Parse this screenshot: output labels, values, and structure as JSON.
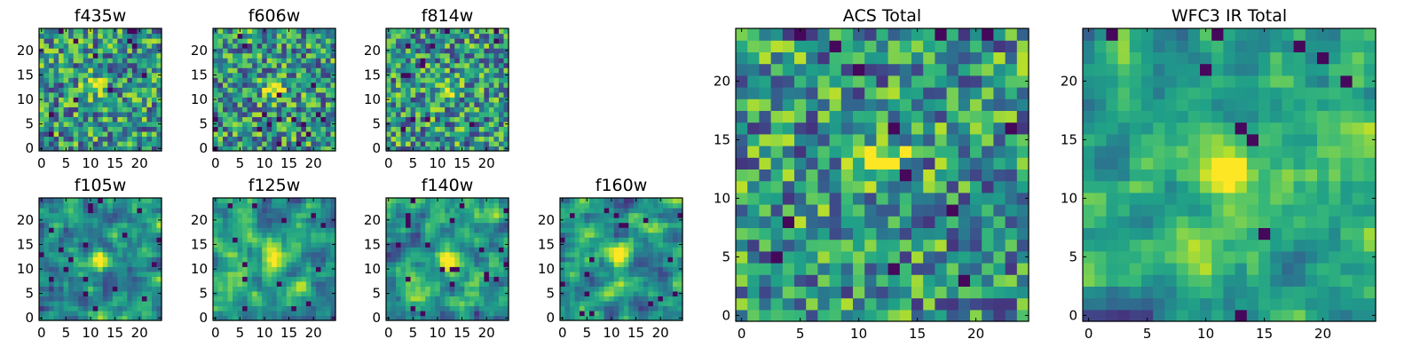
{
  "chart_data": [
    {
      "type": "heatmap",
      "title": "f435w",
      "colormap": "viridis",
      "xlim": [
        -0.5,
        24.5
      ],
      "ylim": [
        -0.5,
        24.5
      ],
      "xticks": [
        0,
        5,
        10,
        15,
        20
      ],
      "yticks": [
        0,
        5,
        10,
        15,
        20
      ],
      "center_peak": [
        11,
        13
      ],
      "noise": "high",
      "seed": 11
    },
    {
      "type": "heatmap",
      "title": "f606w",
      "colormap": "viridis",
      "xlim": [
        -0.5,
        24.5
      ],
      "ylim": [
        -0.5,
        24.5
      ],
      "xticks": [
        0,
        5,
        10,
        15,
        20
      ],
      "yticks": [
        0,
        5,
        10,
        15,
        20
      ],
      "center_peak": [
        12,
        12
      ],
      "noise": "medium",
      "seed": 23
    },
    {
      "type": "heatmap",
      "title": "f814w",
      "colormap": "viridis",
      "xlim": [
        -0.5,
        24.5
      ],
      "ylim": [
        -0.5,
        24.5
      ],
      "xticks": [
        0,
        5,
        10,
        15,
        20
      ],
      "yticks": [
        0,
        5,
        10,
        15,
        20
      ],
      "center_peak": [
        12,
        12
      ],
      "noise": "high",
      "seed": 37
    },
    {
      "type": "heatmap",
      "title": "f105w",
      "colormap": "viridis",
      "xlim": [
        -0.5,
        24.5
      ],
      "ylim": [
        -0.5,
        24.5
      ],
      "xticks": [
        0,
        5,
        10,
        15,
        20
      ],
      "yticks": [
        0,
        5,
        10,
        15,
        20
      ],
      "center_peak": [
        12,
        12
      ],
      "noise": "smooth",
      "seed": 41
    },
    {
      "type": "heatmap",
      "title": "f125w",
      "colormap": "viridis",
      "xlim": [
        -0.5,
        24.5
      ],
      "ylim": [
        -0.5,
        24.5
      ],
      "xticks": [
        0,
        5,
        10,
        15,
        20
      ],
      "yticks": [
        0,
        5,
        10,
        15,
        20
      ],
      "center_peak": [
        12,
        12
      ],
      "noise": "smooth",
      "seed": 53
    },
    {
      "type": "heatmap",
      "title": "f140w",
      "colormap": "viridis",
      "xlim": [
        -0.5,
        24.5
      ],
      "ylim": [
        -0.5,
        24.5
      ],
      "xticks": [
        0,
        5,
        10,
        15,
        20
      ],
      "yticks": [
        0,
        5,
        10,
        15,
        20
      ],
      "center_peak": [
        12,
        12
      ],
      "noise": "smooth",
      "seed": 67
    },
    {
      "type": "heatmap",
      "title": "f160w",
      "colormap": "viridis",
      "xlim": [
        -0.5,
        24.5
      ],
      "ylim": [
        -0.5,
        24.5
      ],
      "xticks": [
        0,
        5,
        10,
        15,
        20
      ],
      "yticks": [
        0,
        5,
        10,
        15,
        20
      ],
      "center_peak": [
        12,
        13
      ],
      "noise": "smooth",
      "seed": 71
    },
    {
      "type": "heatmap",
      "title": "ACS Total",
      "colormap": "viridis",
      "xlim": [
        -0.5,
        24.5
      ],
      "ylim": [
        -0.5,
        24.5
      ],
      "xticks": [
        0,
        5,
        10,
        15,
        20
      ],
      "yticks": [
        0,
        5,
        10,
        15,
        20
      ],
      "center_peak": [
        12,
        13
      ],
      "noise": "medium",
      "seed": 83
    },
    {
      "type": "heatmap",
      "title": "WFC3 IR Total",
      "colormap": "viridis",
      "xlim": [
        -0.5,
        24.5
      ],
      "ylim": [
        -0.5,
        24.5
      ],
      "xticks": [
        0,
        5,
        10,
        15,
        20
      ],
      "yticks": [
        0,
        5,
        10,
        15,
        20
      ],
      "center_peak": [
        12,
        12
      ],
      "noise": "smooth",
      "seed": 97
    }
  ]
}
